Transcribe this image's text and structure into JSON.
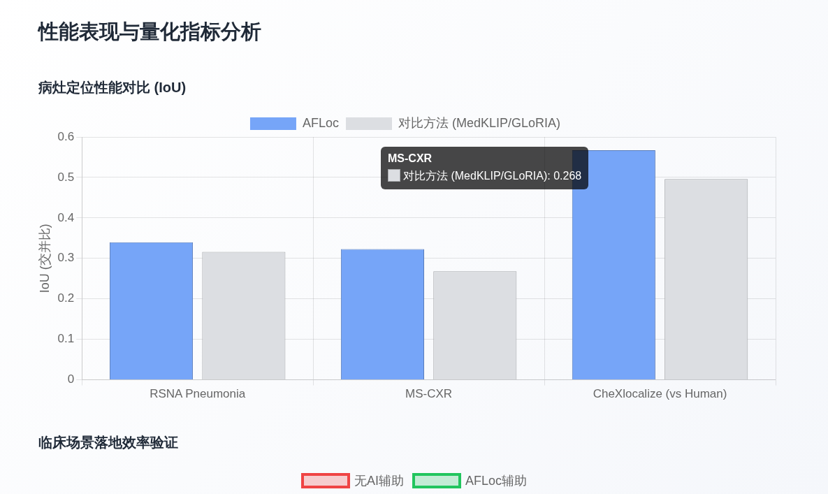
{
  "chart_data": [
    {
      "type": "bar",
      "title": "性能表现与量化指标分析",
      "subtitle": "病灶定位性能对比 (IoU)",
      "categories": [
        "RSNA Pneumonia",
        "MS-CXR",
        "CheXlocalize (vs Human)"
      ],
      "series": [
        {
          "name": "AFLoc",
          "color": "#76a5f8",
          "values": [
            0.34,
            0.323,
            0.567
          ]
        },
        {
          "name": "对比方法 (MedKLIP/GLoRIA)",
          "color": "#dcdee2",
          "values": [
            0.316,
            0.268,
            0.496
          ]
        }
      ],
      "ylabel": "IoU (交并比)",
      "ylim": [
        0,
        0.6
      ],
      "yticks": [
        0,
        0.1,
        0.2,
        0.3,
        0.4,
        0.5,
        0.6
      ],
      "grid": true,
      "legend": "top",
      "annotations": [
        "MS-CXR",
        "对比方法 (MedKLIP/GLoRIA): 0.268"
      ]
    },
    {
      "type": "other",
      "title": "临床场景落地效率验证",
      "series": [
        {
          "name": "无AI辅助",
          "color": "#ef4444"
        },
        {
          "name": "AFLoc辅助",
          "color": "#22c55e"
        }
      ],
      "legend": "top"
    }
  ]
}
